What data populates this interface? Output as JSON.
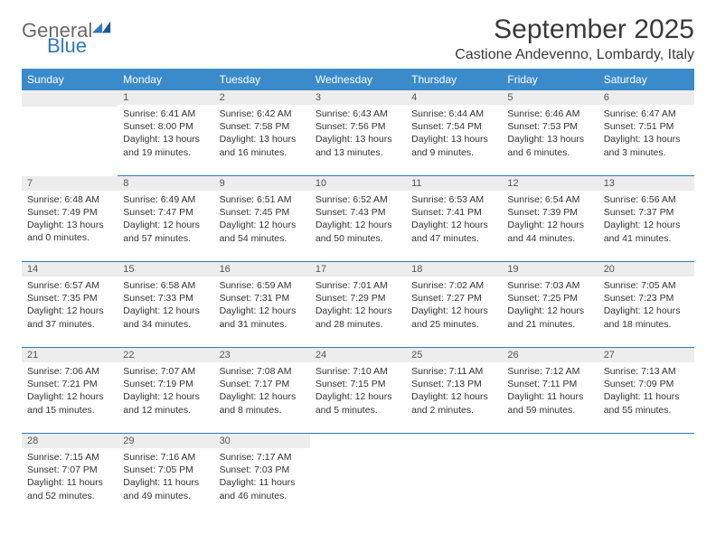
{
  "logo": {
    "general": "General",
    "blue": "Blue"
  },
  "title": "September 2025",
  "location": "Castione Andevenno, Lombardy, Italy",
  "colors": {
    "header_bg": "#3b8bca",
    "header_text": "#ffffff",
    "daynum_bg": "#ededed",
    "cell_border": "#2f7ac0",
    "logo_gray": "#6a6a6a",
    "logo_blue": "#2f7ac0"
  },
  "days_of_week": [
    "Sunday",
    "Monday",
    "Tuesday",
    "Wednesday",
    "Thursday",
    "Friday",
    "Saturday"
  ],
  "weeks": [
    [
      null,
      {
        "n": "1",
        "sunrise": "6:41 AM",
        "sunset": "8:00 PM",
        "daylight": "13 hours and 19 minutes."
      },
      {
        "n": "2",
        "sunrise": "6:42 AM",
        "sunset": "7:58 PM",
        "daylight": "13 hours and 16 minutes."
      },
      {
        "n": "3",
        "sunrise": "6:43 AM",
        "sunset": "7:56 PM",
        "daylight": "13 hours and 13 minutes."
      },
      {
        "n": "4",
        "sunrise": "6:44 AM",
        "sunset": "7:54 PM",
        "daylight": "13 hours and 9 minutes."
      },
      {
        "n": "5",
        "sunrise": "6:46 AM",
        "sunset": "7:53 PM",
        "daylight": "13 hours and 6 minutes."
      },
      {
        "n": "6",
        "sunrise": "6:47 AM",
        "sunset": "7:51 PM",
        "daylight": "13 hours and 3 minutes."
      }
    ],
    [
      {
        "n": "7",
        "sunrise": "6:48 AM",
        "sunset": "7:49 PM",
        "daylight": "13 hours and 0 minutes."
      },
      {
        "n": "8",
        "sunrise": "6:49 AM",
        "sunset": "7:47 PM",
        "daylight": "12 hours and 57 minutes."
      },
      {
        "n": "9",
        "sunrise": "6:51 AM",
        "sunset": "7:45 PM",
        "daylight": "12 hours and 54 minutes."
      },
      {
        "n": "10",
        "sunrise": "6:52 AM",
        "sunset": "7:43 PM",
        "daylight": "12 hours and 50 minutes."
      },
      {
        "n": "11",
        "sunrise": "6:53 AM",
        "sunset": "7:41 PM",
        "daylight": "12 hours and 47 minutes."
      },
      {
        "n": "12",
        "sunrise": "6:54 AM",
        "sunset": "7:39 PM",
        "daylight": "12 hours and 44 minutes."
      },
      {
        "n": "13",
        "sunrise": "6:56 AM",
        "sunset": "7:37 PM",
        "daylight": "12 hours and 41 minutes."
      }
    ],
    [
      {
        "n": "14",
        "sunrise": "6:57 AM",
        "sunset": "7:35 PM",
        "daylight": "12 hours and 37 minutes."
      },
      {
        "n": "15",
        "sunrise": "6:58 AM",
        "sunset": "7:33 PM",
        "daylight": "12 hours and 34 minutes."
      },
      {
        "n": "16",
        "sunrise": "6:59 AM",
        "sunset": "7:31 PM",
        "daylight": "12 hours and 31 minutes."
      },
      {
        "n": "17",
        "sunrise": "7:01 AM",
        "sunset": "7:29 PM",
        "daylight": "12 hours and 28 minutes."
      },
      {
        "n": "18",
        "sunrise": "7:02 AM",
        "sunset": "7:27 PM",
        "daylight": "12 hours and 25 minutes."
      },
      {
        "n": "19",
        "sunrise": "7:03 AM",
        "sunset": "7:25 PM",
        "daylight": "12 hours and 21 minutes."
      },
      {
        "n": "20",
        "sunrise": "7:05 AM",
        "sunset": "7:23 PM",
        "daylight": "12 hours and 18 minutes."
      }
    ],
    [
      {
        "n": "21",
        "sunrise": "7:06 AM",
        "sunset": "7:21 PM",
        "daylight": "12 hours and 15 minutes."
      },
      {
        "n": "22",
        "sunrise": "7:07 AM",
        "sunset": "7:19 PM",
        "daylight": "12 hours and 12 minutes."
      },
      {
        "n": "23",
        "sunrise": "7:08 AM",
        "sunset": "7:17 PM",
        "daylight": "12 hours and 8 minutes."
      },
      {
        "n": "24",
        "sunrise": "7:10 AM",
        "sunset": "7:15 PM",
        "daylight": "12 hours and 5 minutes."
      },
      {
        "n": "25",
        "sunrise": "7:11 AM",
        "sunset": "7:13 PM",
        "daylight": "12 hours and 2 minutes."
      },
      {
        "n": "26",
        "sunrise": "7:12 AM",
        "sunset": "7:11 PM",
        "daylight": "11 hours and 59 minutes."
      },
      {
        "n": "27",
        "sunrise": "7:13 AM",
        "sunset": "7:09 PM",
        "daylight": "11 hours and 55 minutes."
      }
    ],
    [
      {
        "n": "28",
        "sunrise": "7:15 AM",
        "sunset": "7:07 PM",
        "daylight": "11 hours and 52 minutes."
      },
      {
        "n": "29",
        "sunrise": "7:16 AM",
        "sunset": "7:05 PM",
        "daylight": "11 hours and 49 minutes."
      },
      {
        "n": "30",
        "sunrise": "7:17 AM",
        "sunset": "7:03 PM",
        "daylight": "11 hours and 46 minutes."
      },
      null,
      null,
      null,
      null
    ]
  ],
  "labels": {
    "sunrise_prefix": "Sunrise: ",
    "sunset_prefix": "Sunset: ",
    "daylight_prefix": "Daylight: "
  }
}
